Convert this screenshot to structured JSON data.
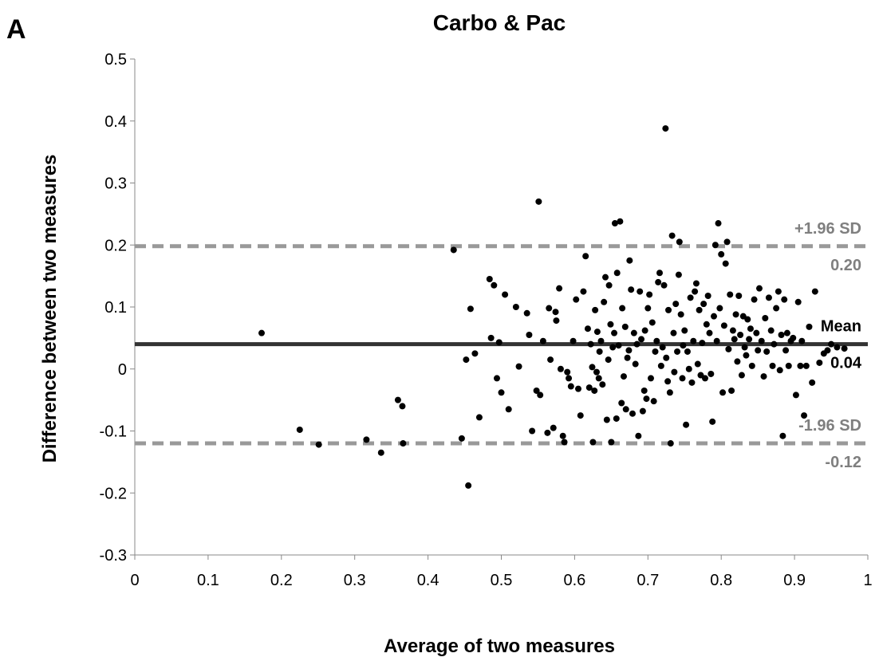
{
  "chart_data": {
    "type": "scatter",
    "panel_label": "A",
    "title": "Carbo & Pac",
    "xlabel": "Average of two measures",
    "ylabel": "Difference between two measures",
    "xlim": [
      0,
      1
    ],
    "ylim": [
      -0.3,
      0.5
    ],
    "x_ticks": [
      0,
      0.1,
      0.2,
      0.3,
      0.4,
      0.5,
      0.6,
      0.7,
      0.8,
      0.9,
      1
    ],
    "x_tick_labels": [
      "0",
      "0.1",
      "0.2",
      "0.3",
      "0.4",
      "0.5",
      "0.6",
      "0.7",
      "0.8",
      "0.9",
      "1"
    ],
    "y_ticks": [
      0.5,
      0.4,
      0.3,
      0.2,
      0.1,
      0,
      -0.1,
      -0.2,
      -0.3
    ],
    "y_tick_labels": [
      "0.5",
      "0.4",
      "0.3",
      "0.2",
      "0.1",
      "0",
      "-0.1",
      "-0.2",
      "-0.3"
    ],
    "grid": false,
    "colors": {
      "points": "#000000",
      "mean_line": "#333333",
      "limit_lines": "#999999",
      "limit_text": "#7f7f7f"
    },
    "reference_lines": [
      {
        "name": "+1.96 SD",
        "value_label": "0.20",
        "y": 0.198,
        "style": "dashed"
      },
      {
        "name": "Mean",
        "value_label": "0.04",
        "y": 0.04,
        "style": "solid"
      },
      {
        "name": "-1.96 SD",
        "value_label": "-0.12",
        "y": -0.12,
        "style": "dashed"
      }
    ],
    "points": [
      [
        0.173,
        0.058
      ],
      [
        0.225,
        -0.098
      ],
      [
        0.251,
        -0.122
      ],
      [
        0.316,
        -0.114
      ],
      [
        0.336,
        -0.135
      ],
      [
        0.359,
        -0.05
      ],
      [
        0.365,
        -0.06
      ],
      [
        0.366,
        -0.12
      ],
      [
        0.435,
        0.192
      ],
      [
        0.446,
        -0.112
      ],
      [
        0.452,
        0.015
      ],
      [
        0.455,
        -0.188
      ],
      [
        0.458,
        0.097
      ],
      [
        0.464,
        0.025
      ],
      [
        0.47,
        -0.078
      ],
      [
        0.484,
        0.145
      ],
      [
        0.486,
        0.05
      ],
      [
        0.49,
        0.135
      ],
      [
        0.494,
        -0.015
      ],
      [
        0.497,
        0.043
      ],
      [
        0.5,
        -0.038
      ],
      [
        0.505,
        0.12
      ],
      [
        0.51,
        -0.065
      ],
      [
        0.52,
        0.1
      ],
      [
        0.524,
        0.004
      ],
      [
        0.535,
        0.09
      ],
      [
        0.538,
        0.055
      ],
      [
        0.542,
        -0.1
      ],
      [
        0.548,
        -0.035
      ],
      [
        0.551,
        0.27
      ],
      [
        0.553,
        -0.042
      ],
      [
        0.557,
        0.045
      ],
      [
        0.563,
        -0.103
      ],
      [
        0.565,
        0.098
      ],
      [
        0.567,
        0.015
      ],
      [
        0.571,
        -0.095
      ],
      [
        0.574,
        0.092
      ],
      [
        0.575,
        0.078
      ],
      [
        0.579,
        0.13
      ],
      [
        0.581,
        0.0
      ],
      [
        0.584,
        -0.108
      ],
      [
        0.586,
        -0.118
      ],
      [
        0.59,
        -0.005
      ],
      [
        0.592,
        -0.015
      ],
      [
        0.595,
        -0.028
      ],
      [
        0.598,
        0.045
      ],
      [
        0.602,
        0.112
      ],
      [
        0.605,
        -0.032
      ],
      [
        0.608,
        -0.075
      ],
      [
        0.612,
        0.125
      ],
      [
        0.615,
        0.182
      ],
      [
        0.618,
        0.065
      ],
      [
        0.62,
        -0.03
      ],
      [
        0.622,
        0.04
      ],
      [
        0.624,
        0.003
      ],
      [
        0.625,
        -0.118
      ],
      [
        0.627,
        -0.035
      ],
      [
        0.628,
        0.095
      ],
      [
        0.63,
        -0.005
      ],
      [
        0.631,
        0.06
      ],
      [
        0.633,
        -0.015
      ],
      [
        0.634,
        0.028
      ],
      [
        0.636,
        0.045
      ],
      [
        0.638,
        -0.025
      ],
      [
        0.64,
        0.108
      ],
      [
        0.642,
        0.148
      ],
      [
        0.644,
        -0.082
      ],
      [
        0.646,
        0.015
      ],
      [
        0.647,
        0.135
      ],
      [
        0.649,
        0.072
      ],
      [
        0.65,
        -0.118
      ],
      [
        0.652,
        0.035
      ],
      [
        0.654,
        0.058
      ],
      [
        0.655,
        0.235
      ],
      [
        0.657,
        -0.08
      ],
      [
        0.658,
        0.155
      ],
      [
        0.66,
        0.038
      ],
      [
        0.662,
        0.238
      ],
      [
        0.664,
        -0.055
      ],
      [
        0.665,
        0.098
      ],
      [
        0.667,
        -0.012
      ],
      [
        0.669,
        0.068
      ],
      [
        0.67,
        -0.065
      ],
      [
        0.672,
        0.018
      ],
      [
        0.674,
        0.03
      ],
      [
        0.675,
        0.175
      ],
      [
        0.677,
        0.128
      ],
      [
        0.679,
        -0.072
      ],
      [
        0.681,
        0.058
      ],
      [
        0.683,
        0.008
      ],
      [
        0.685,
        0.04
      ],
      [
        0.687,
        -0.108
      ],
      [
        0.689,
        0.125
      ],
      [
        0.691,
        0.048
      ],
      [
        0.693,
        -0.068
      ],
      [
        0.695,
        -0.035
      ],
      [
        0.696,
        0.062
      ],
      [
        0.698,
        -0.048
      ],
      [
        0.7,
        0.098
      ],
      [
        0.702,
        0.12
      ],
      [
        0.704,
        -0.015
      ],
      [
        0.706,
        0.075
      ],
      [
        0.708,
        -0.052
      ],
      [
        0.71,
        0.028
      ],
      [
        0.712,
        0.045
      ],
      [
        0.714,
        0.14
      ],
      [
        0.716,
        0.155
      ],
      [
        0.718,
        0.005
      ],
      [
        0.72,
        0.035
      ],
      [
        0.722,
        0.135
      ],
      [
        0.724,
        0.388
      ],
      [
        0.725,
        0.018
      ],
      [
        0.727,
        -0.02
      ],
      [
        0.728,
        0.095
      ],
      [
        0.73,
        -0.038
      ],
      [
        0.731,
        -0.12
      ],
      [
        0.733,
        0.215
      ],
      [
        0.735,
        0.058
      ],
      [
        0.736,
        -0.005
      ],
      [
        0.738,
        0.105
      ],
      [
        0.74,
        0.028
      ],
      [
        0.742,
        0.152
      ],
      [
        0.743,
        0.205
      ],
      [
        0.745,
        0.088
      ],
      [
        0.747,
        -0.015
      ],
      [
        0.748,
        0.038
      ],
      [
        0.75,
        0.062
      ],
      [
        0.752,
        -0.09
      ],
      [
        0.754,
        0.028
      ],
      [
        0.756,
        0.0
      ],
      [
        0.758,
        0.115
      ],
      [
        0.76,
        -0.022
      ],
      [
        0.762,
        0.045
      ],
      [
        0.764,
        0.125
      ],
      [
        0.766,
        0.138
      ],
      [
        0.768,
        0.008
      ],
      [
        0.77,
        0.095
      ],
      [
        0.772,
        -0.01
      ],
      [
        0.774,
        0.042
      ],
      [
        0.776,
        0.105
      ],
      [
        0.778,
        -0.015
      ],
      [
        0.78,
        0.072
      ],
      [
        0.782,
        0.118
      ],
      [
        0.784,
        0.058
      ],
      [
        0.786,
        -0.008
      ],
      [
        0.788,
        -0.085
      ],
      [
        0.79,
        0.085
      ],
      [
        0.792,
        0.2
      ],
      [
        0.794,
        0.045
      ],
      [
        0.796,
        0.235
      ],
      [
        0.798,
        0.098
      ],
      [
        0.8,
        0.185
      ],
      [
        0.802,
        -0.038
      ],
      [
        0.804,
        0.07
      ],
      [
        0.806,
        0.17
      ],
      [
        0.808,
        0.205
      ],
      [
        0.81,
        0.032
      ],
      [
        0.812,
        0.12
      ],
      [
        0.814,
        -0.035
      ],
      [
        0.816,
        0.062
      ],
      [
        0.818,
        0.048
      ],
      [
        0.82,
        0.088
      ],
      [
        0.822,
        0.012
      ],
      [
        0.824,
        0.118
      ],
      [
        0.826,
        0.055
      ],
      [
        0.828,
        -0.01
      ],
      [
        0.83,
        0.085
      ],
      [
        0.832,
        0.035
      ],
      [
        0.834,
        0.022
      ],
      [
        0.836,
        0.08
      ],
      [
        0.838,
        0.048
      ],
      [
        0.84,
        0.065
      ],
      [
        0.842,
        0.005
      ],
      [
        0.845,
        0.112
      ],
      [
        0.848,
        0.058
      ],
      [
        0.85,
        0.03
      ],
      [
        0.852,
        0.13
      ],
      [
        0.855,
        0.045
      ],
      [
        0.858,
        -0.012
      ],
      [
        0.86,
        0.082
      ],
      [
        0.862,
        0.028
      ],
      [
        0.865,
        0.115
      ],
      [
        0.868,
        0.062
      ],
      [
        0.87,
        0.005
      ],
      [
        0.872,
        0.04
      ],
      [
        0.875,
        0.098
      ],
      [
        0.878,
        0.125
      ],
      [
        0.88,
        -0.002
      ],
      [
        0.882,
        0.055
      ],
      [
        0.884,
        -0.108
      ],
      [
        0.886,
        0.112
      ],
      [
        0.888,
        0.03
      ],
      [
        0.89,
        0.058
      ],
      [
        0.892,
        0.005
      ],
      [
        0.895,
        0.045
      ],
      [
        0.898,
        0.05
      ],
      [
        0.902,
        -0.042
      ],
      [
        0.905,
        0.108
      ],
      [
        0.908,
        0.005
      ],
      [
        0.91,
        0.045
      ],
      [
        0.913,
        -0.075
      ],
      [
        0.916,
        0.005
      ],
      [
        0.92,
        0.068
      ],
      [
        0.924,
        -0.022
      ],
      [
        0.928,
        0.125
      ],
      [
        0.934,
        0.01
      ],
      [
        0.94,
        0.025
      ],
      [
        0.945,
        0.03
      ],
      [
        0.95,
        0.04
      ],
      [
        0.958,
        0.035
      ],
      [
        0.968,
        0.033
      ]
    ]
  }
}
